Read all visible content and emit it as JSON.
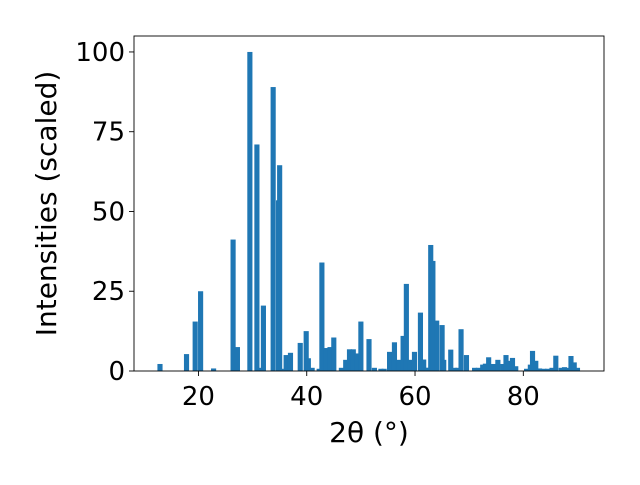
{
  "chart_data": {
    "type": "bar",
    "title": "",
    "xlabel": "2θ (°)",
    "ylabel": "Intensities (scaled)",
    "xlim": [
      8.1,
      94.9
    ],
    "ylim": [
      0,
      105
    ],
    "xticks": [
      20,
      40,
      60,
      80
    ],
    "yticks": [
      0,
      25,
      50,
      75,
      100
    ],
    "grid": false,
    "legend": "none",
    "bar_color": "#1f77b4",
    "bar_width": 0.95,
    "x": [
      12.9,
      17.8,
      19.4,
      20.4,
      22.8,
      26.4,
      27.2,
      29.5,
      30.8,
      31.3,
      32.0,
      33.8,
      34.8,
      35.0,
      35.3,
      36.2,
      37.0,
      38.8,
      39.9,
      40.3,
      41.0,
      42.3,
      42.8,
      43.6,
      44.3,
      45.0,
      46.4,
      47.2,
      47.9,
      48.6,
      49.3,
      50.0,
      51.5,
      52.5,
      53.7,
      54.3,
      55.3,
      56.2,
      56.9,
      57.1,
      57.8,
      58.4,
      59.0,
      59.9,
      61.0,
      61.6,
      62.0,
      62.3,
      62.9,
      63.3,
      64.0,
      65.0,
      65.3,
      66.6,
      67.3,
      67.9,
      68.5,
      69.5,
      71.0,
      71.7,
      72.5,
      73.0,
      73.6,
      74.5,
      75.3,
      76.2,
      76.8,
      77.5,
      78.0,
      78.6,
      80.6,
      81.3,
      81.7,
      82.3,
      83.0,
      83.8,
      84.5,
      85.3,
      86.0,
      87.0,
      87.6,
      88.2,
      88.8,
      89.4,
      90.0
    ],
    "values": [
      2.2,
      5.3,
      15.5,
      25,
      0.8,
      41.2,
      7.5,
      100,
      71,
      1,
      20.5,
      89,
      53.5,
      64.5,
      0.7,
      5,
      5.7,
      8.8,
      12.5,
      4,
      1,
      0.7,
      34,
      7.2,
      7.5,
      10.5,
      1,
      3.5,
      6.8,
      6.8,
      5.5,
      15.5,
      10,
      1,
      0.7,
      0.7,
      6,
      9,
      3.5,
      3.4,
      11,
      27.3,
      3.5,
      6,
      18.3,
      3.6,
      1,
      1,
      39.5,
      34.5,
      15.8,
      14.4,
      3.5,
      6.7,
      1,
      1,
      13.1,
      5,
      1,
      1,
      2,
      2.3,
      4.3,
      2.2,
      3.5,
      2.2,
      5,
      3.2,
      4.1,
      1.5,
      0.7,
      2,
      6.3,
      3.2,
      0.8,
      0.7,
      0.7,
      1,
      4.8,
      1,
      1.2,
      1,
      4.7,
      2.7,
      1
    ]
  }
}
